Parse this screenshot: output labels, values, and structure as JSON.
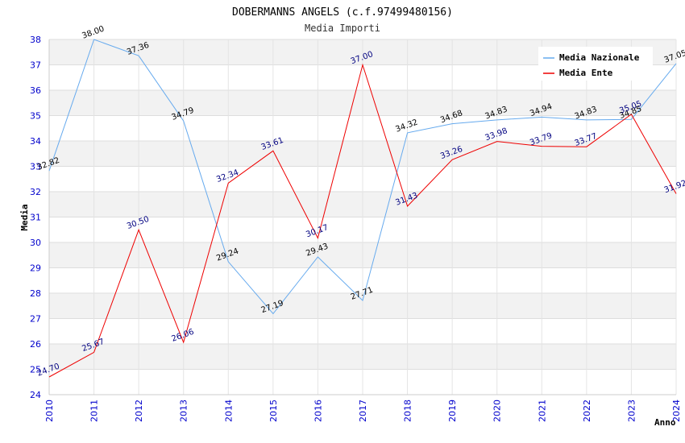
{
  "chart_data": {
    "type": "line",
    "title": "DOBERMANNS ANGELS (c.f.97499480156)",
    "subtitle": "Media Importi",
    "xlabel": "Anno",
    "ylabel": "Media",
    "categories": [
      "2010",
      "2011",
      "2012",
      "2013",
      "2014",
      "2015",
      "2016",
      "2017",
      "2018",
      "2019",
      "2020",
      "2021",
      "2022",
      "2023",
      "2024"
    ],
    "ylim": [
      24,
      38
    ],
    "yticks": [
      24,
      25,
      26,
      27,
      28,
      29,
      30,
      31,
      32,
      33,
      34,
      35,
      36,
      37,
      38
    ],
    "grid": true,
    "legend_position": "top-right",
    "series": [
      {
        "name": "Media Nazionale",
        "color": "#66aaee",
        "values": [
          32.82,
          38.0,
          37.36,
          34.79,
          29.24,
          27.19,
          29.43,
          27.71,
          34.32,
          34.68,
          34.83,
          34.94,
          34.83,
          34.85,
          37.05
        ],
        "labels": [
          "32.82",
          "38.00",
          "37.36",
          "34.79",
          "29.24",
          "27.19",
          "29.43",
          "27.71",
          "34.32",
          "34.68",
          "34.83",
          "34.94",
          "34.83",
          "34.85",
          "37.05"
        ]
      },
      {
        "name": "Media Ente",
        "color": "#ee0000",
        "values": [
          24.7,
          25.67,
          30.5,
          26.06,
          32.34,
          33.61,
          30.17,
          37.0,
          31.43,
          33.26,
          33.98,
          33.79,
          33.77,
          35.05,
          31.92
        ],
        "labels": [
          "24.70",
          "25.67",
          "30.50",
          "26.06",
          "32.34",
          "33.61",
          "30.17",
          "37.00",
          "31.43",
          "33.26",
          "33.98",
          "33.79",
          "33.77",
          "35.05",
          "31.92"
        ]
      }
    ]
  }
}
